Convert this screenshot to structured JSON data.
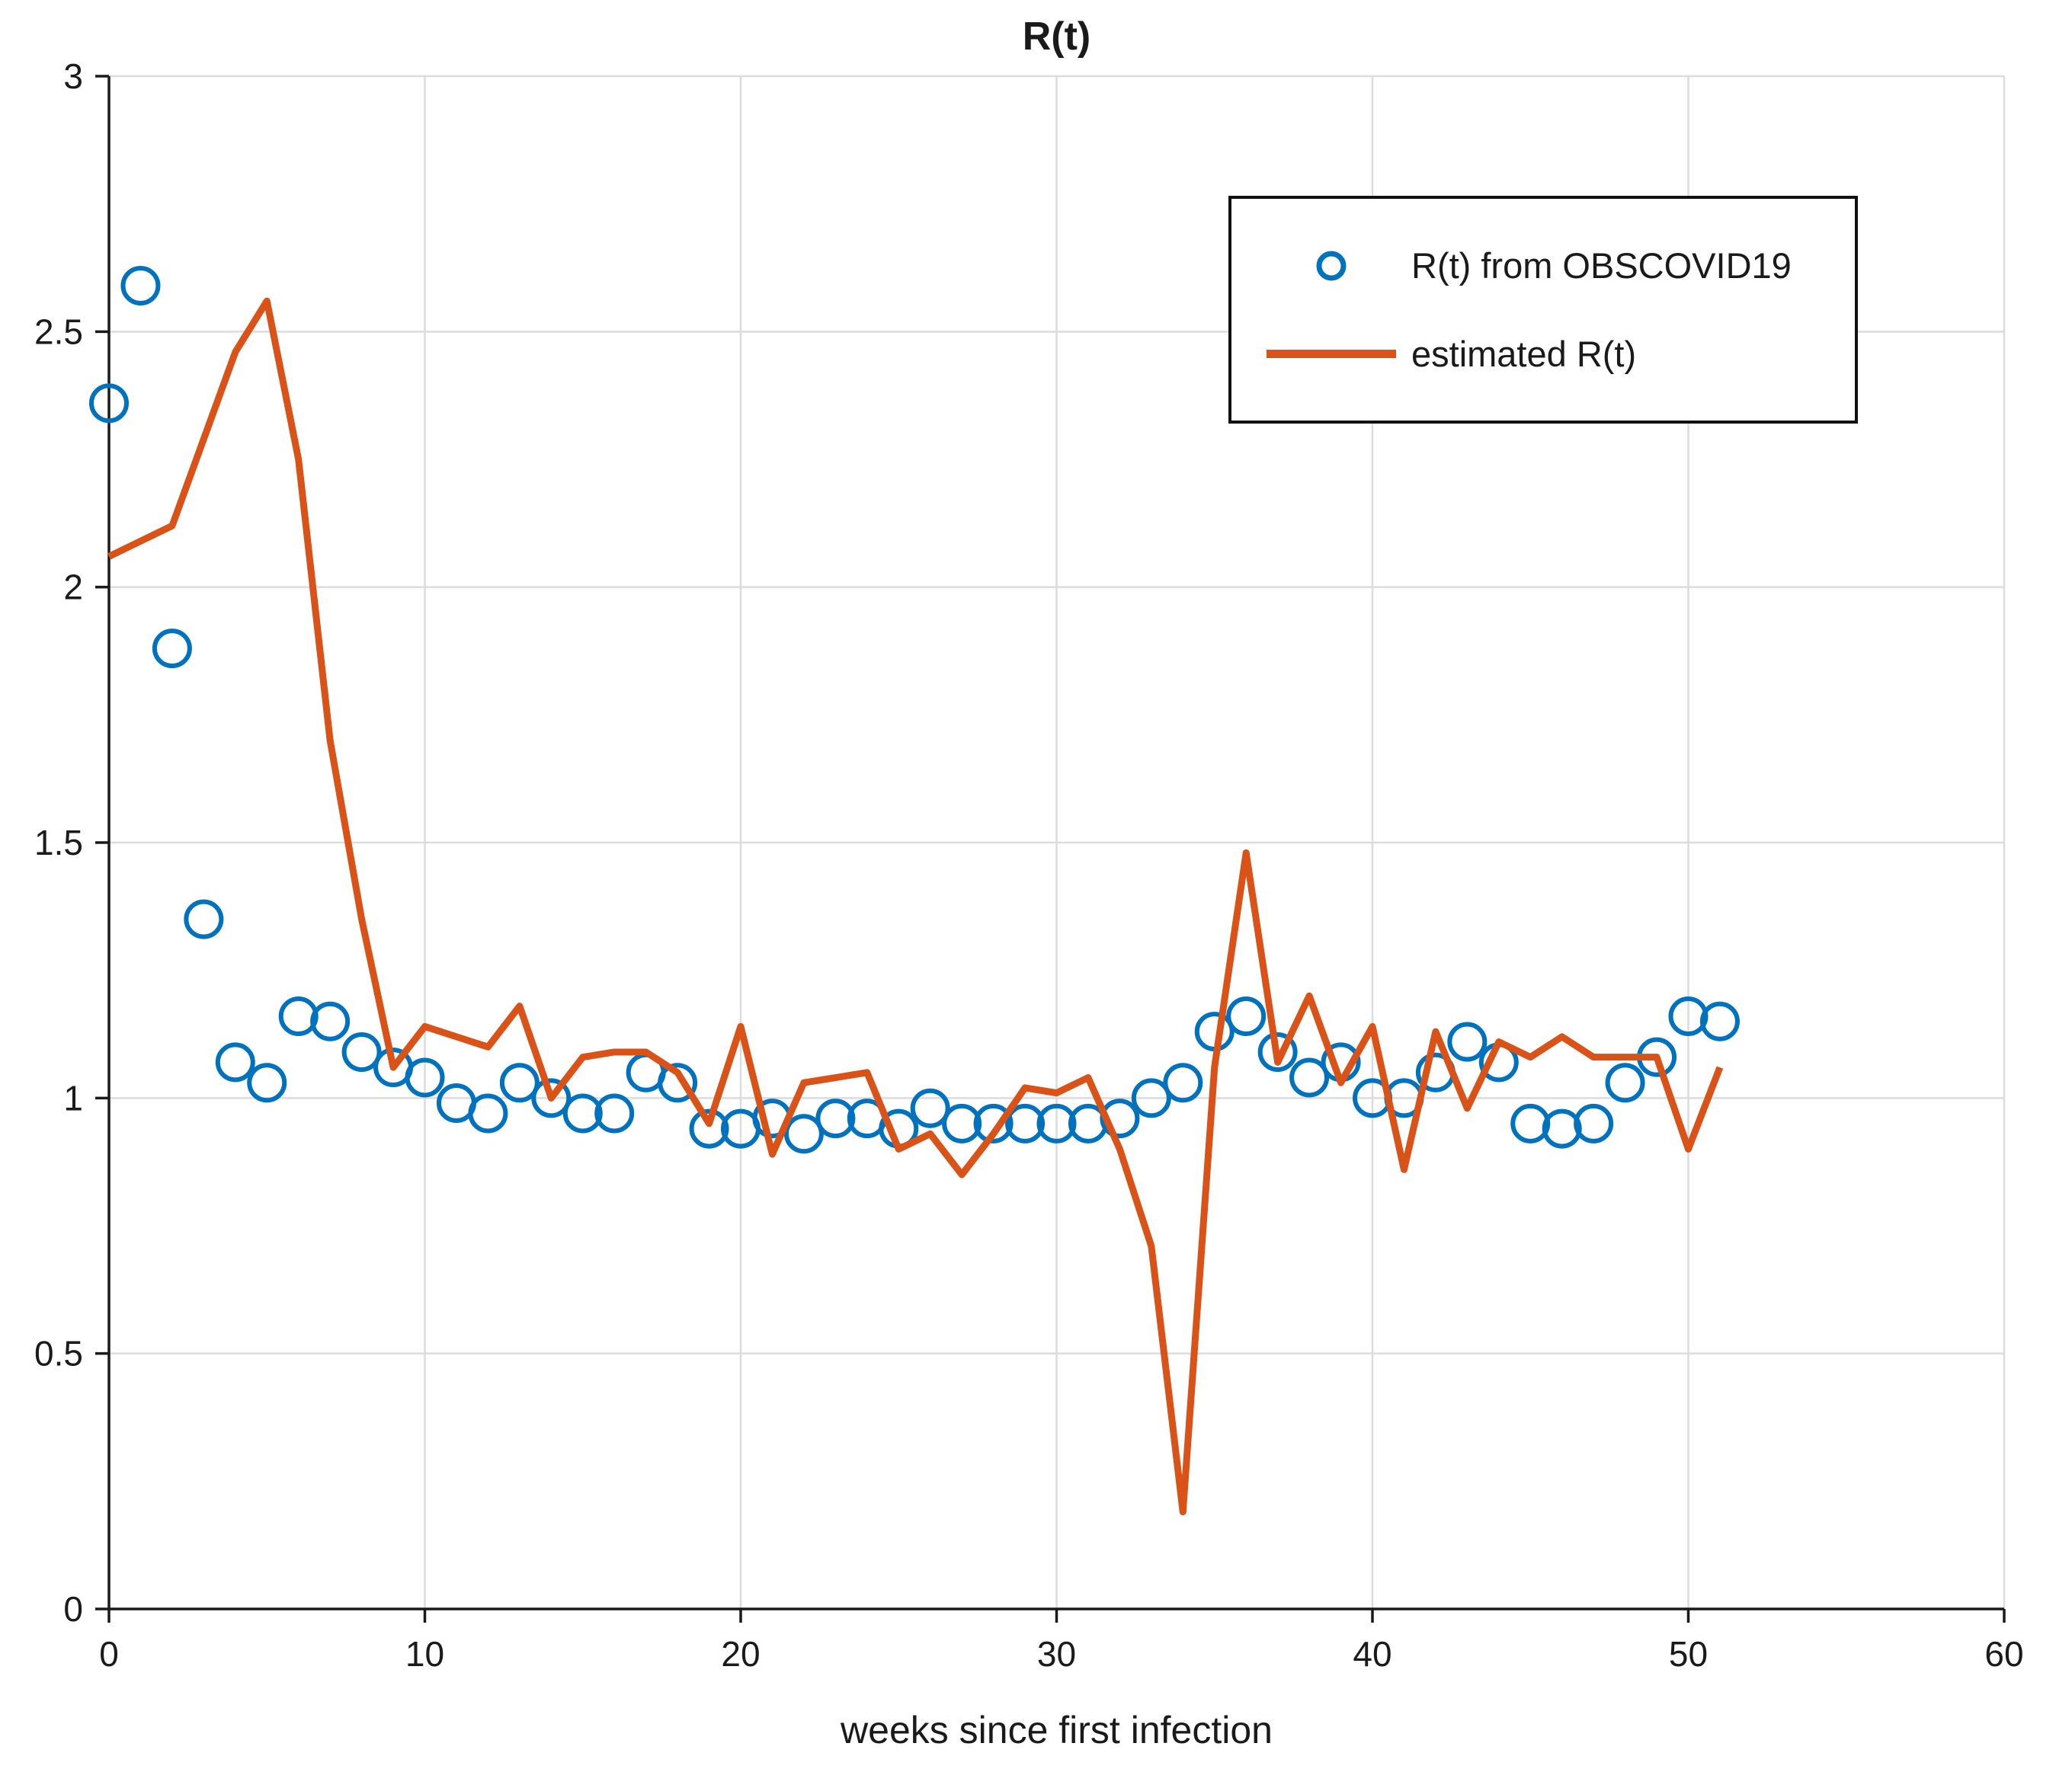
{
  "figure": {
    "title": "R(t)",
    "xlabel": "weeks since first infection"
  },
  "legend": {
    "items": [
      {
        "label": "R(t) from OBSCOVID19",
        "marker": "circle",
        "color": "#0072BD"
      },
      {
        "label": "estimated R(t)",
        "marker": "line",
        "color": "#D95319"
      }
    ]
  },
  "colors": {
    "scatter": "#0072BD",
    "line": "#D95319",
    "grid": "#dcdcdc",
    "axis": "#1a1a1a",
    "text": "#1a1a1a"
  },
  "chart_data": {
    "type": "scatter",
    "title": "R(t)",
    "xlabel": "weeks since first infection",
    "ylabel": "",
    "xlim": [
      0,
      60
    ],
    "ylim": [
      0,
      3
    ],
    "xticks": [
      0,
      10,
      20,
      30,
      40,
      50,
      60
    ],
    "yticks": [
      0,
      0.5,
      1,
      1.5,
      2,
      2.5,
      3
    ],
    "ytick_labels": [
      "0",
      "0.5",
      "1",
      "1.5",
      "2",
      "2.5",
      "3"
    ],
    "grid": true,
    "legend_position": "top-right",
    "x": [
      0,
      1,
      2,
      3,
      4,
      5,
      6,
      7,
      8,
      9,
      10,
      11,
      12,
      13,
      14,
      15,
      16,
      17,
      18,
      19,
      20,
      21,
      22,
      23,
      24,
      25,
      26,
      27,
      28,
      29,
      30,
      31,
      32,
      33,
      34,
      35,
      36,
      37,
      38,
      39,
      40,
      41,
      42,
      43,
      44,
      45,
      46,
      47,
      48,
      49,
      50,
      51
    ],
    "series": [
      {
        "name": "R(t) from OBSCOVID19",
        "type": "scatter",
        "marker": "circle",
        "color": "#0072BD",
        "values": [
          2.36,
          2.59,
          1.88,
          1.35,
          1.07,
          1.03,
          1.16,
          1.15,
          1.09,
          1.06,
          1.04,
          0.99,
          0.97,
          1.03,
          1.0,
          0.97,
          0.97,
          1.05,
          1.03,
          0.94,
          0.94,
          0.96,
          0.93,
          0.96,
          0.96,
          0.94,
          0.98,
          0.95,
          0.95,
          0.95,
          0.95,
          0.95,
          0.96,
          1.0,
          1.03,
          1.13,
          1.16,
          1.09,
          1.04,
          1.07,
          1.0,
          1.0,
          1.05,
          1.11,
          1.07,
          0.95,
          0.94,
          0.95,
          1.03,
          1.08,
          1.16,
          1.15
        ]
      },
      {
        "name": "estimated R(t)",
        "type": "line",
        "marker": "none",
        "color": "#D95319",
        "values": [
          2.06,
          2.09,
          2.12,
          2.29,
          2.46,
          2.56,
          2.25,
          1.7,
          1.35,
          1.06,
          1.14,
          1.12,
          1.1,
          1.18,
          1.0,
          1.08,
          1.09,
          1.09,
          1.05,
          0.95,
          1.14,
          0.89,
          1.03,
          1.04,
          1.05,
          0.9,
          0.93,
          0.85,
          0.93,
          1.02,
          1.01,
          1.04,
          0.9,
          0.71,
          0.19,
          1.06,
          1.48,
          1.07,
          1.2,
          1.03,
          1.14,
          0.86,
          1.13,
          0.98,
          1.11,
          1.08,
          1.12,
          1.08,
          1.08,
          1.08,
          0.9,
          1.06
        ]
      }
    ]
  }
}
